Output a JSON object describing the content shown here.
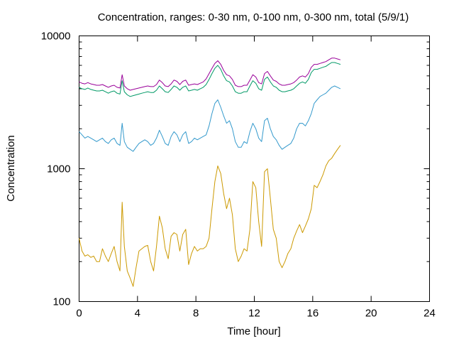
{
  "chart_data": {
    "type": "line",
    "title": "Concentration, ranges: 0-30 nm, 0-100 nm, 0-300 nm, total (5/9/1)",
    "xlabel": "Time [hour]",
    "ylabel": "Concentration",
    "xlim": [
      0,
      24
    ],
    "ylim": [
      100,
      10000
    ],
    "yscale": "log",
    "x_ticks": [
      0,
      4,
      8,
      12,
      16,
      20,
      24
    ],
    "y_ticks": [
      100,
      1000,
      10000
    ],
    "x_tick_labels": [
      "0",
      "4",
      "8",
      "12",
      "16",
      "20",
      "24"
    ],
    "y_tick_labels": [
      "100",
      "1000",
      "10000"
    ],
    "grid": false,
    "legend": "none",
    "series": [
      {
        "color": "#cc9900",
        "x": [
          0,
          0.2,
          0.4,
          0.6,
          0.8,
          1.0,
          1.2,
          1.4,
          1.6,
          1.8,
          2.0,
          2.2,
          2.4,
          2.6,
          2.8,
          2.95,
          3.1,
          3.3,
          3.5,
          3.7,
          3.9,
          4.1,
          4.3,
          4.5,
          4.7,
          4.9,
          5.1,
          5.3,
          5.5,
          5.7,
          5.9,
          6.1,
          6.3,
          6.5,
          6.7,
          6.9,
          7.1,
          7.3,
          7.5,
          7.7,
          7.9,
          8.1,
          8.3,
          8.5,
          8.7,
          8.9,
          9.1,
          9.3,
          9.5,
          9.7,
          9.9,
          10.1,
          10.3,
          10.5,
          10.7,
          10.9,
          11.1,
          11.3,
          11.5,
          11.7,
          11.9,
          12.1,
          12.3,
          12.5,
          12.7,
          12.9,
          13.1,
          13.3,
          13.5,
          13.7,
          13.9,
          14.1,
          14.3,
          14.5,
          14.7,
          14.9,
          15.1,
          15.3,
          15.5,
          15.7,
          15.9,
          16.1,
          16.3,
          16.5,
          16.7,
          16.9,
          17.1,
          17.3,
          17.5,
          17.7,
          17.9
        ],
        "values": [
          300,
          240,
          220,
          225,
          215,
          220,
          200,
          200,
          250,
          220,
          200,
          230,
          260,
          200,
          170,
          560,
          260,
          170,
          150,
          130,
          180,
          240,
          250,
          260,
          265,
          200,
          170,
          260,
          440,
          360,
          250,
          210,
          310,
          330,
          320,
          240,
          320,
          350,
          190,
          230,
          260,
          240,
          250,
          250,
          260,
          300,
          500,
          800,
          1050,
          920,
          650,
          500,
          600,
          450,
          250,
          200,
          220,
          250,
          240,
          350,
          800,
          720,
          400,
          260,
          950,
          1000,
          600,
          350,
          300,
          200,
          180,
          200,
          230,
          250,
          300,
          340,
          380,
          330,
          370,
          420,
          500,
          750,
          720,
          800,
          900,
          1050,
          1150,
          1200,
          1300,
          1400,
          1500
        ]
      },
      {
        "color": "#3399cc",
        "x": [
          0,
          0.2,
          0.4,
          0.6,
          0.8,
          1.0,
          1.2,
          1.4,
          1.6,
          1.8,
          2.0,
          2.2,
          2.4,
          2.6,
          2.8,
          2.95,
          3.1,
          3.3,
          3.5,
          3.7,
          3.9,
          4.1,
          4.3,
          4.5,
          4.7,
          4.9,
          5.1,
          5.3,
          5.5,
          5.7,
          5.9,
          6.1,
          6.3,
          6.5,
          6.7,
          6.9,
          7.1,
          7.3,
          7.5,
          7.7,
          7.9,
          8.1,
          8.3,
          8.5,
          8.7,
          8.9,
          9.1,
          9.3,
          9.5,
          9.7,
          9.9,
          10.1,
          10.3,
          10.5,
          10.7,
          10.9,
          11.1,
          11.3,
          11.5,
          11.7,
          11.9,
          12.1,
          12.3,
          12.5,
          12.7,
          12.9,
          13.1,
          13.3,
          13.5,
          13.7,
          13.9,
          14.1,
          14.3,
          14.5,
          14.7,
          14.9,
          15.1,
          15.3,
          15.5,
          15.7,
          15.9,
          16.1,
          16.3,
          16.5,
          16.7,
          16.9,
          17.1,
          17.3,
          17.5,
          17.7,
          17.9
        ],
        "values": [
          1900,
          1800,
          1700,
          1750,
          1700,
          1650,
          1600,
          1650,
          1700,
          1600,
          1550,
          1650,
          1700,
          1550,
          1500,
          2200,
          1600,
          1450,
          1400,
          1350,
          1450,
          1550,
          1600,
          1650,
          1600,
          1500,
          1550,
          1700,
          1950,
          1750,
          1550,
          1500,
          1750,
          1900,
          1800,
          1600,
          1800,
          1900,
          1550,
          1600,
          1700,
          1650,
          1700,
          1750,
          1800,
          2100,
          2600,
          3100,
          3300,
          2900,
          2500,
          2200,
          2300,
          2000,
          1600,
          1450,
          1450,
          1600,
          1550,
          1900,
          2200,
          2000,
          1700,
          1600,
          2300,
          2400,
          2000,
          1750,
          1650,
          1500,
          1400,
          1450,
          1500,
          1550,
          1700,
          2000,
          2200,
          2200,
          2100,
          2300,
          2600,
          3100,
          3300,
          3500,
          3600,
          3700,
          3900,
          4100,
          4200,
          4100,
          4000
        ]
      },
      {
        "color": "#009966",
        "x": [
          0,
          0.2,
          0.4,
          0.6,
          0.8,
          1.0,
          1.2,
          1.4,
          1.6,
          1.8,
          2.0,
          2.2,
          2.4,
          2.6,
          2.8,
          2.95,
          3.1,
          3.3,
          3.5,
          3.7,
          3.9,
          4.1,
          4.3,
          4.5,
          4.7,
          4.9,
          5.1,
          5.3,
          5.5,
          5.7,
          5.9,
          6.1,
          6.3,
          6.5,
          6.7,
          6.9,
          7.1,
          7.3,
          7.5,
          7.7,
          7.9,
          8.1,
          8.3,
          8.5,
          8.7,
          8.9,
          9.1,
          9.3,
          9.5,
          9.7,
          9.9,
          10.1,
          10.3,
          10.5,
          10.7,
          10.9,
          11.1,
          11.3,
          11.5,
          11.7,
          11.9,
          12.1,
          12.3,
          12.5,
          12.7,
          12.9,
          13.1,
          13.3,
          13.5,
          13.7,
          13.9,
          14.1,
          14.3,
          14.5,
          14.7,
          14.9,
          15.1,
          15.3,
          15.5,
          15.7,
          15.9,
          16.1,
          16.3,
          16.5,
          16.7,
          16.9,
          17.1,
          17.3,
          17.5,
          17.7,
          17.9
        ],
        "values": [
          4100,
          4000,
          3950,
          4050,
          3950,
          3900,
          3850,
          3850,
          3900,
          3800,
          3700,
          3800,
          3850,
          3700,
          3650,
          4600,
          3800,
          3600,
          3500,
          3550,
          3600,
          3650,
          3700,
          3750,
          3800,
          3750,
          3750,
          3900,
          4200,
          4000,
          3800,
          3750,
          3950,
          4200,
          4100,
          3900,
          4100,
          4200,
          3850,
          3900,
          3950,
          3900,
          4000,
          4100,
          4300,
          4700,
          5200,
          5700,
          6000,
          5600,
          5000,
          4600,
          4500,
          4200,
          3800,
          3700,
          3700,
          3800,
          3800,
          4200,
          4600,
          4400,
          4000,
          3900,
          4700,
          4900,
          4500,
          4200,
          4100,
          3900,
          3800,
          3800,
          3850,
          3900,
          4000,
          4200,
          4400,
          4500,
          4400,
          4700,
          5300,
          5600,
          5600,
          5700,
          5800,
          5900,
          6100,
          6300,
          6300,
          6200,
          6100
        ]
      },
      {
        "color": "#990099",
        "x": [
          0,
          0.2,
          0.4,
          0.6,
          0.8,
          1.0,
          1.2,
          1.4,
          1.6,
          1.8,
          2.0,
          2.2,
          2.4,
          2.6,
          2.8,
          2.95,
          3.1,
          3.3,
          3.5,
          3.7,
          3.9,
          4.1,
          4.3,
          4.5,
          4.7,
          4.9,
          5.1,
          5.3,
          5.5,
          5.7,
          5.9,
          6.1,
          6.3,
          6.5,
          6.7,
          6.9,
          7.1,
          7.3,
          7.5,
          7.7,
          7.9,
          8.1,
          8.3,
          8.5,
          8.7,
          8.9,
          9.1,
          9.3,
          9.5,
          9.7,
          9.9,
          10.1,
          10.3,
          10.5,
          10.7,
          10.9,
          11.1,
          11.3,
          11.5,
          11.7,
          11.9,
          12.1,
          12.3,
          12.5,
          12.7,
          12.9,
          13.1,
          13.3,
          13.5,
          13.7,
          13.9,
          14.1,
          14.3,
          14.5,
          14.7,
          14.9,
          15.1,
          15.3,
          15.5,
          15.7,
          15.9,
          16.1,
          16.3,
          16.5,
          16.7,
          16.9,
          17.1,
          17.3,
          17.5,
          17.7,
          17.9
        ],
        "values": [
          4500,
          4400,
          4350,
          4450,
          4350,
          4300,
          4250,
          4250,
          4300,
          4200,
          4100,
          4200,
          4250,
          4100,
          4050,
          5100,
          4200,
          4000,
          3900,
          3950,
          4000,
          4050,
          4100,
          4150,
          4200,
          4150,
          4150,
          4300,
          4650,
          4450,
          4200,
          4150,
          4350,
          4650,
          4550,
          4300,
          4550,
          4650,
          4250,
          4300,
          4350,
          4300,
          4400,
          4500,
          4750,
          5200,
          5700,
          6200,
          6500,
          6100,
          5500,
          5100,
          5000,
          4700,
          4250,
          4150,
          4150,
          4250,
          4250,
          4650,
          5100,
          4900,
          4450,
          4350,
          5200,
          5400,
          5000,
          4650,
          4550,
          4350,
          4250,
          4250,
          4300,
          4350,
          4450,
          4650,
          4900,
          5000,
          4900,
          5200,
          5800,
          6100,
          6100,
          6200,
          6300,
          6400,
          6600,
          6800,
          6800,
          6700,
          6600
        ]
      }
    ]
  }
}
